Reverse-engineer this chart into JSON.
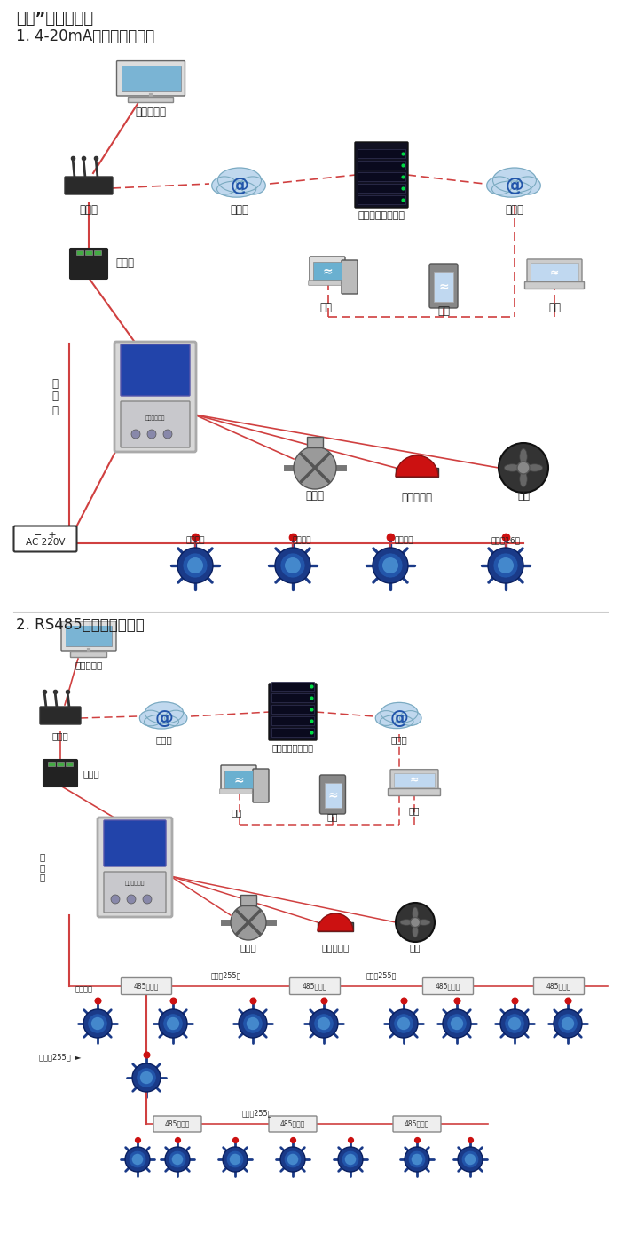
{
  "title1": "大众”系列报警器",
  "subtitle1": "1. 4-20mA信号连接系统图",
  "subtitle2": "2. RS485信号连接系统图",
  "bg_color": "#ffffff",
  "red": "#d04040",
  "dash_red": "#d04040",
  "text_color": "#222222"
}
